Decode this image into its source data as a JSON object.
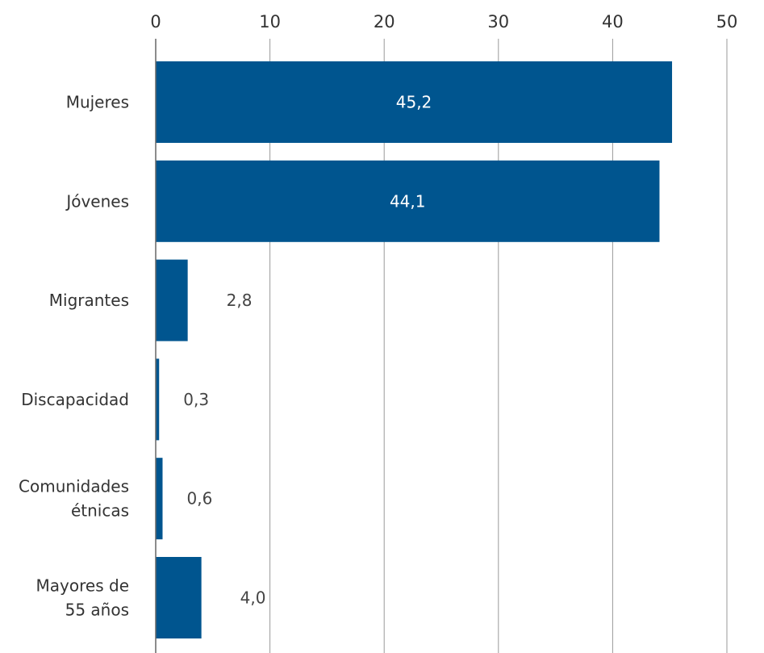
{
  "chart_data": {
    "type": "bar",
    "orientation": "horizontal",
    "categories": [
      [
        "Mujeres"
      ],
      [
        "Jóvenes"
      ],
      [
        "Migrantes"
      ],
      [
        "Discapacidad"
      ],
      [
        "Comunidades",
        "étnicas"
      ],
      [
        "Mayores de",
        "55 años"
      ]
    ],
    "values": [
      45.2,
      44.1,
      2.8,
      0.3,
      0.6,
      4.0
    ],
    "data_labels": [
      "45,2",
      "44,1",
      "2,8",
      "0,3",
      "0,6",
      "4,0"
    ],
    "xlim": [
      0,
      50
    ],
    "x_ticks": [
      0,
      10,
      20,
      30,
      40,
      50
    ],
    "x_tick_labels": [
      "0",
      "10",
      "20",
      "30",
      "40",
      "50"
    ],
    "x_axis_position": "top",
    "grid": true,
    "legend": "none",
    "title": "",
    "xlabel": "",
    "ylabel": "",
    "colors": {
      "bar": "#00558f",
      "label_inside": "#ffffff",
      "label_outside": "#444444",
      "text": "#333333",
      "grid": "#9a9a9a"
    }
  }
}
